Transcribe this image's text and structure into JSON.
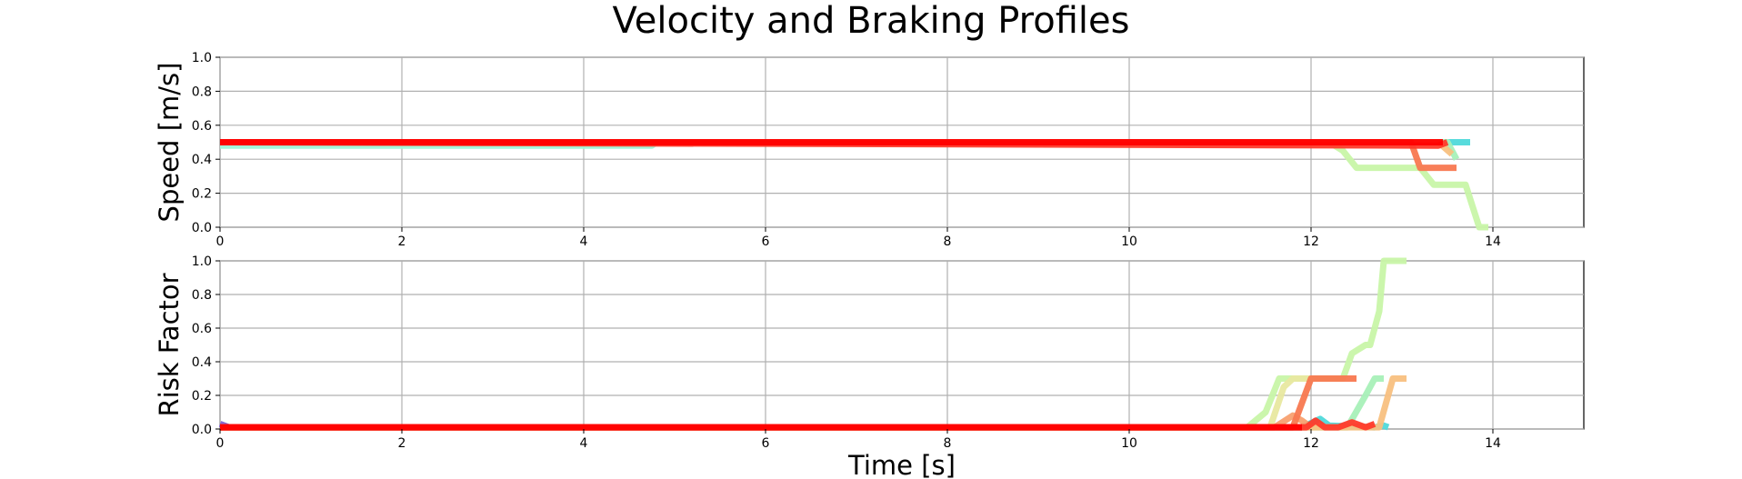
{
  "figure": {
    "title": "Velocity and Braking Profiles"
  },
  "chart_data": [
    {
      "type": "line",
      "ylabel": "Speed [m/s]",
      "xlabel": "",
      "xlim": [
        0,
        15
      ],
      "ylim": [
        0,
        1.0
      ],
      "xticks": [
        0,
        2,
        4,
        6,
        8,
        10,
        12,
        14
      ],
      "yticks": [
        0.0,
        0.2,
        0.4,
        0.6,
        0.8,
        1.0
      ],
      "xtick_labels": [
        "0",
        "2",
        "4",
        "6",
        "8",
        "10",
        "12",
        "14"
      ],
      "ytick_labels": [
        "0.0",
        "0.2",
        "0.4",
        "0.6",
        "0.8",
        "1.0"
      ],
      "grid": true,
      "series": [
        {
          "color": "#9ff5d8",
          "x": [
            0,
            4.75,
            4.8,
            12.0
          ],
          "y": [
            0.48,
            0.48,
            0.5,
            0.5
          ]
        },
        {
          "color": "#4fd9da",
          "x": [
            0,
            13.75
          ],
          "y": [
            0.5,
            0.5
          ]
        },
        {
          "color": "#c8f5a8",
          "x": [
            0,
            12.2,
            12.35,
            12.5,
            13.2,
            13.35,
            13.7,
            13.85,
            13.95
          ],
          "y": [
            0.5,
            0.5,
            0.45,
            0.35,
            0.35,
            0.25,
            0.25,
            0.0,
            0.0
          ]
        },
        {
          "color": "#a8f0b8",
          "x": [
            0,
            13.5,
            13.6
          ],
          "y": [
            0.5,
            0.5,
            0.4
          ]
        },
        {
          "color": "#f8c080",
          "x": [
            0,
            13.4,
            13.55
          ],
          "y": [
            0.5,
            0.5,
            0.43
          ]
        },
        {
          "color": "#f87850",
          "x": [
            0,
            13.1,
            13.2,
            13.6
          ],
          "y": [
            0.5,
            0.5,
            0.35,
            0.35
          ]
        },
        {
          "color": "#ff3a2a",
          "x": [
            0,
            13.4,
            13.5
          ],
          "y": [
            0.5,
            0.48,
            0.5
          ]
        },
        {
          "color": "#ff0000",
          "x": [
            0,
            13.45
          ],
          "y": [
            0.5,
            0.5
          ]
        }
      ]
    },
    {
      "type": "line",
      "ylabel": "Risk Factor",
      "xlabel": "Time [s]",
      "xlim": [
        0,
        15
      ],
      "ylim": [
        0,
        1.0
      ],
      "xticks": [
        0,
        2,
        4,
        6,
        8,
        10,
        12,
        14
      ],
      "yticks": [
        0.0,
        0.2,
        0.4,
        0.6,
        0.8,
        1.0
      ],
      "xtick_labels": [
        "0",
        "2",
        "4",
        "6",
        "8",
        "10",
        "12",
        "14"
      ],
      "ytick_labels": [
        "0.0",
        "0.2",
        "0.4",
        "0.6",
        "0.8",
        "1.0"
      ],
      "grid": true,
      "series": [
        {
          "color": "#8060d0",
          "x": [
            0,
            0.1
          ],
          "y": [
            0.03,
            0.01
          ]
        },
        {
          "color": "#4fd9da",
          "x": [
            0,
            11.9,
            12.1,
            12.2,
            12.7,
            12.8,
            12.85
          ],
          "y": [
            0.01,
            0.01,
            0.06,
            0.02,
            0.01,
            0.02,
            0.01
          ]
        },
        {
          "color": "#a8f0b8",
          "x": [
            0,
            12.4,
            12.6,
            12.7,
            12.8
          ],
          "y": [
            0.01,
            0.01,
            0.2,
            0.3,
            0.3
          ]
        },
        {
          "color": "#c8f5a8",
          "x": [
            0,
            11.3,
            11.5,
            11.65,
            11.75,
            12.35,
            12.45,
            12.6,
            12.65,
            12.75,
            12.8,
            13.05
          ],
          "y": [
            0.01,
            0.01,
            0.1,
            0.3,
            0.3,
            0.3,
            0.45,
            0.5,
            0.5,
            0.7,
            1.0,
            1.0
          ]
        },
        {
          "color": "#e8e8a0",
          "x": [
            0,
            11.55,
            11.7,
            11.8,
            12.0
          ],
          "y": [
            0.01,
            0.01,
            0.25,
            0.3,
            0.3
          ]
        },
        {
          "color": "#f8c080",
          "x": [
            0,
            12.75,
            12.9,
            13.05
          ],
          "y": [
            0.01,
            0.01,
            0.3,
            0.3
          ]
        },
        {
          "color": "#f8a070",
          "x": [
            0,
            11.6,
            11.8,
            11.9,
            12.0
          ],
          "y": [
            0.01,
            0.01,
            0.08,
            0.05,
            0.01
          ]
        },
        {
          "color": "#f87850",
          "x": [
            0,
            11.8,
            12.0,
            12.1,
            12.5
          ],
          "y": [
            0.01,
            0.01,
            0.3,
            0.3,
            0.3
          ]
        },
        {
          "color": "#ff3a2a",
          "x": [
            0,
            11.95,
            12.05,
            12.15,
            12.3,
            12.45,
            12.6,
            12.7
          ],
          "y": [
            0.01,
            0.01,
            0.05,
            0.01,
            0.01,
            0.04,
            0.01,
            0.03
          ]
        },
        {
          "color": "#ff0000",
          "x": [
            0,
            11.9
          ],
          "y": [
            0.01,
            0.01
          ]
        }
      ]
    }
  ]
}
